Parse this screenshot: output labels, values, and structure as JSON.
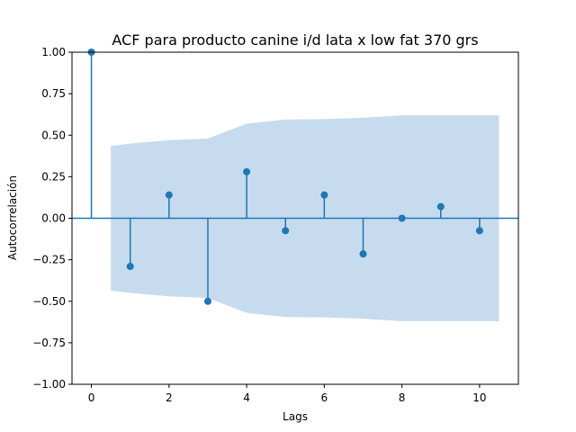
{
  "chart_data": {
    "type": "stem",
    "title": "ACF para producto canine i/d lata x low fat 370 grs",
    "xlabel": "Lags",
    "ylabel": "Autocorrelación",
    "xlim": [
      -0.5,
      11
    ],
    "ylim": [
      -1.0,
      1.0
    ],
    "xticks": [
      0,
      2,
      4,
      6,
      8,
      10
    ],
    "yticks": [
      -1.0,
      -0.75,
      -0.5,
      -0.25,
      0.0,
      0.25,
      0.5,
      0.75,
      1.0
    ],
    "ytick_labels": [
      "−1.00",
      "−0.75",
      "−0.50",
      "−0.25",
      "0.00",
      "0.25",
      "0.50",
      "0.75",
      "1.00"
    ],
    "lags": [
      0,
      1,
      2,
      3,
      4,
      5,
      6,
      7,
      8,
      9,
      10
    ],
    "acf": [
      1.0,
      -0.29,
      0.14,
      -0.5,
      0.28,
      -0.075,
      0.14,
      -0.215,
      0.0,
      0.07,
      -0.075
    ],
    "confidence_band": {
      "lags": [
        0.5,
        1,
        2,
        3,
        4,
        5,
        6,
        7,
        8,
        9,
        10,
        10.5
      ],
      "upper": [
        0.435,
        0.45,
        0.47,
        0.48,
        0.57,
        0.595,
        0.597,
        0.605,
        0.62,
        0.62,
        0.62,
        0.62
      ]
    },
    "colors": {
      "stem": "#1f77b4",
      "band": "#c6dbed"
    },
    "grid": false,
    "legend": "none"
  }
}
